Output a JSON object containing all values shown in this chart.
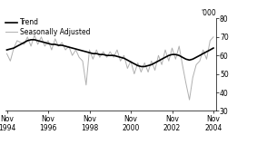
{
  "title": "",
  "ylabel_right": "'000",
  "ylim": [
    30,
    80
  ],
  "yticks": [
    30,
    40,
    50,
    60,
    70,
    80
  ],
  "xlim_start": 1994.75,
  "xlim_end": 2004.95,
  "xtick_years": [
    1994,
    1996,
    1998,
    2000,
    2002,
    2004
  ],
  "xtick_labels": [
    "Nov\n1994",
    "Nov\n1996",
    "Nov\n1998",
    "Nov\n2000",
    "Nov\n2002",
    "Nov\n2004"
  ],
  "legend_trend": "Trend",
  "legend_seasonal": "Seasonally Adjusted",
  "trend_color": "#000000",
  "seasonal_color": "#b0b0b0",
  "trend_linewidth": 1.2,
  "seasonal_linewidth": 0.7,
  "background_color": "#ffffff",
  "trend_data": [
    [
      1994.83,
      63
    ],
    [
      1995.0,
      63.5
    ],
    [
      1995.17,
      64
    ],
    [
      1995.33,
      65
    ],
    [
      1995.5,
      66
    ],
    [
      1995.67,
      67
    ],
    [
      1995.83,
      68
    ],
    [
      1996.0,
      68.5
    ],
    [
      1996.17,
      68.5
    ],
    [
      1996.33,
      68
    ],
    [
      1996.5,
      67.5
    ],
    [
      1996.67,
      67
    ],
    [
      1996.83,
      66.5
    ],
    [
      1997.0,
      66
    ],
    [
      1997.17,
      66
    ],
    [
      1997.33,
      65.5
    ],
    [
      1997.5,
      65.5
    ],
    [
      1997.67,
      65
    ],
    [
      1997.83,
      64.5
    ],
    [
      1998.0,
      64
    ],
    [
      1998.17,
      63.5
    ],
    [
      1998.33,
      63
    ],
    [
      1998.5,
      62.5
    ],
    [
      1998.67,
      62
    ],
    [
      1998.83,
      61.5
    ],
    [
      1999.0,
      61
    ],
    [
      1999.17,
      61
    ],
    [
      1999.33,
      60.5
    ],
    [
      1999.5,
      60.5
    ],
    [
      1999.67,
      60
    ],
    [
      1999.83,
      60
    ],
    [
      2000.0,
      60
    ],
    [
      2000.17,
      59.5
    ],
    [
      2000.33,
      59
    ],
    [
      2000.5,
      58.5
    ],
    [
      2000.67,
      57.5
    ],
    [
      2000.83,
      56.5
    ],
    [
      2001.0,
      55.5
    ],
    [
      2001.17,
      54.5
    ],
    [
      2001.33,
      54
    ],
    [
      2001.5,
      54
    ],
    [
      2001.67,
      54.5
    ],
    [
      2001.83,
      55
    ],
    [
      2002.0,
      56
    ],
    [
      2002.17,
      57
    ],
    [
      2002.33,
      58
    ],
    [
      2002.5,
      59
    ],
    [
      2002.67,
      60
    ],
    [
      2002.83,
      60.5
    ],
    [
      2003.0,
      60.5
    ],
    [
      2003.17,
      60
    ],
    [
      2003.33,
      59
    ],
    [
      2003.5,
      58
    ],
    [
      2003.67,
      57.5
    ],
    [
      2003.83,
      58
    ],
    [
      2004.0,
      59
    ],
    [
      2004.17,
      60
    ],
    [
      2004.33,
      61
    ],
    [
      2004.5,
      62
    ],
    [
      2004.67,
      63
    ],
    [
      2004.83,
      64
    ]
  ],
  "seasonal_data": [
    [
      1994.83,
      61
    ],
    [
      1995.0,
      57
    ],
    [
      1995.17,
      64
    ],
    [
      1995.33,
      68
    ],
    [
      1995.5,
      67
    ],
    [
      1995.67,
      66
    ],
    [
      1995.83,
      70
    ],
    [
      1996.0,
      65
    ],
    [
      1996.17,
      71
    ],
    [
      1996.33,
      66
    ],
    [
      1996.5,
      70
    ],
    [
      1996.67,
      65
    ],
    [
      1996.83,
      68
    ],
    [
      1997.0,
      63
    ],
    [
      1997.17,
      69
    ],
    [
      1997.33,
      65
    ],
    [
      1997.5,
      67
    ],
    [
      1997.67,
      63
    ],
    [
      1997.83,
      65
    ],
    [
      1998.0,
      60
    ],
    [
      1998.17,
      63
    ],
    [
      1998.33,
      59
    ],
    [
      1998.5,
      57
    ],
    [
      1998.67,
      44
    ],
    [
      1998.83,
      63
    ],
    [
      1999.0,
      58
    ],
    [
      1999.17,
      63
    ],
    [
      1999.33,
      59
    ],
    [
      1999.5,
      62
    ],
    [
      1999.67,
      59
    ],
    [
      1999.83,
      62
    ],
    [
      2000.0,
      59
    ],
    [
      2000.17,
      63
    ],
    [
      2000.33,
      57
    ],
    [
      2000.5,
      60
    ],
    [
      2000.67,
      53
    ],
    [
      2000.83,
      57
    ],
    [
      2001.0,
      50
    ],
    [
      2001.17,
      56
    ],
    [
      2001.33,
      51
    ],
    [
      2001.5,
      56
    ],
    [
      2001.67,
      51
    ],
    [
      2001.83,
      57
    ],
    [
      2002.0,
      52
    ],
    [
      2002.17,
      60
    ],
    [
      2002.33,
      55
    ],
    [
      2002.5,
      63
    ],
    [
      2002.67,
      57
    ],
    [
      2002.83,
      64
    ],
    [
      2003.0,
      58
    ],
    [
      2003.17,
      65
    ],
    [
      2003.33,
      55
    ],
    [
      2003.5,
      45
    ],
    [
      2003.67,
      36
    ],
    [
      2003.83,
      48
    ],
    [
      2004.0,
      55
    ],
    [
      2004.17,
      57
    ],
    [
      2004.33,
      63
    ],
    [
      2004.5,
      58
    ],
    [
      2004.67,
      68
    ],
    [
      2004.83,
      70
    ]
  ]
}
